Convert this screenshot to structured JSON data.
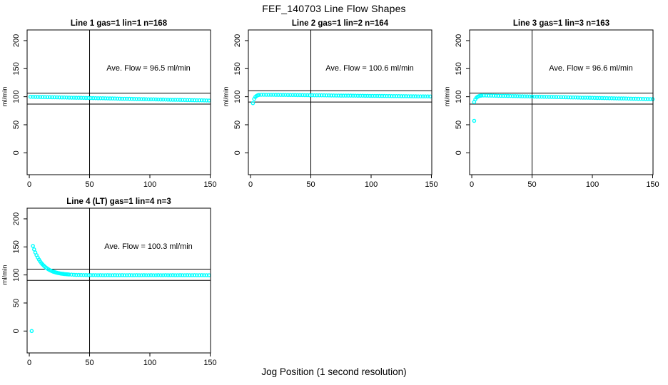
{
  "title": "FEF_140703  Line Flow Shapes",
  "xlabel": "Jog Position (1 second resolution)",
  "ylabel": "ml/min",
  "colors": {
    "marker": "#00FFFF",
    "axis": "#000000",
    "background": "#FFFFFF"
  },
  "axes": {
    "x_ticks": [
      0,
      50,
      100,
      150
    ],
    "y_ticks": [
      0,
      50,
      100,
      150,
      200
    ],
    "x_range": [
      -1.8,
      150.3
    ],
    "y_range": [
      -39,
      219
    ],
    "grid": false
  },
  "chart_data": [
    {
      "type": "scatter",
      "title": "Line 1 gas=1 lin=1 n=168",
      "n": 168,
      "ave_flow": 96.5,
      "annotation": "Ave. Flow =  96.5  ml/min",
      "vline_x": 50,
      "hlines": [
        106.2,
        86.9
      ],
      "points": [
        [
          1,
          99.9
        ],
        [
          3,
          99.8
        ],
        [
          5,
          99.7
        ],
        [
          7,
          99.6
        ],
        [
          9,
          99.5
        ],
        [
          11,
          99.4
        ],
        [
          13,
          99.3
        ],
        [
          15,
          99.2
        ],
        [
          17,
          99.1
        ],
        [
          19,
          99.0
        ],
        [
          21,
          99.0
        ],
        [
          23,
          98.9
        ],
        [
          25,
          98.8
        ],
        [
          27,
          98.7
        ],
        [
          29,
          98.6
        ],
        [
          31,
          98.5
        ],
        [
          33,
          98.4
        ],
        [
          35,
          98.3
        ],
        [
          37,
          98.2
        ],
        [
          39,
          98.1
        ],
        [
          41,
          98.1
        ],
        [
          43,
          98.0
        ],
        [
          45,
          97.9
        ],
        [
          47,
          97.8
        ],
        [
          49,
          97.7
        ],
        [
          51,
          97.6
        ],
        [
          53,
          97.5
        ],
        [
          55,
          97.4
        ],
        [
          57,
          97.3
        ],
        [
          59,
          97.2
        ],
        [
          61,
          97.2
        ],
        [
          63,
          97.1
        ],
        [
          65,
          97.0
        ],
        [
          67,
          96.9
        ],
        [
          69,
          96.8
        ],
        [
          71,
          96.7
        ],
        [
          73,
          96.6
        ],
        [
          75,
          96.5
        ],
        [
          77,
          96.4
        ],
        [
          79,
          96.3
        ],
        [
          81,
          96.3
        ],
        [
          83,
          96.2
        ],
        [
          85,
          96.1
        ],
        [
          87,
          96.0
        ],
        [
          89,
          95.9
        ],
        [
          91,
          95.8
        ],
        [
          93,
          95.7
        ],
        [
          95,
          95.6
        ],
        [
          97,
          95.5
        ],
        [
          99,
          95.4
        ],
        [
          101,
          95.4
        ],
        [
          103,
          95.3
        ],
        [
          105,
          95.2
        ],
        [
          107,
          95.1
        ],
        [
          109,
          95.0
        ],
        [
          111,
          94.9
        ],
        [
          113,
          94.8
        ],
        [
          115,
          94.7
        ],
        [
          117,
          94.6
        ],
        [
          119,
          94.5
        ],
        [
          121,
          94.5
        ],
        [
          123,
          94.4
        ],
        [
          125,
          94.3
        ],
        [
          127,
          94.2
        ],
        [
          129,
          94.1
        ],
        [
          131,
          94.0
        ],
        [
          133,
          93.9
        ],
        [
          135,
          93.8
        ],
        [
          137,
          93.7
        ],
        [
          139,
          93.6
        ],
        [
          141,
          93.6
        ],
        [
          143,
          93.5
        ],
        [
          145,
          93.4
        ],
        [
          147,
          93.3
        ],
        [
          149,
          93.2
        ]
      ]
    },
    {
      "type": "scatter",
      "title": "Line 2 gas=1 lin=2 n=164",
      "n": 164,
      "ave_flow": 100.6,
      "annotation": "Ave. Flow =  100.6  ml/min",
      "vline_x": 50,
      "hlines": [
        110.7,
        90.5
      ],
      "points": [
        [
          2,
          88.5
        ],
        [
          3,
          96.0
        ],
        [
          4,
          99.5
        ],
        [
          5,
          101.5
        ],
        [
          6,
          102.6
        ],
        [
          7,
          103.2
        ],
        [
          9,
          103.5
        ],
        [
          11,
          103.5
        ],
        [
          13,
          103.4
        ],
        [
          15,
          103.4
        ],
        [
          17,
          103.3
        ],
        [
          19,
          103.3
        ],
        [
          21,
          103.2
        ],
        [
          23,
          103.2
        ],
        [
          25,
          103.1
        ],
        [
          27,
          103.1
        ],
        [
          29,
          103.1
        ],
        [
          31,
          103.0
        ],
        [
          33,
          103.0
        ],
        [
          35,
          102.9
        ],
        [
          37,
          102.9
        ],
        [
          39,
          102.8
        ],
        [
          41,
          102.8
        ],
        [
          43,
          102.8
        ],
        [
          45,
          102.7
        ],
        [
          47,
          102.7
        ],
        [
          49,
          102.6
        ],
        [
          51,
          102.6
        ],
        [
          53,
          102.5
        ],
        [
          55,
          102.5
        ],
        [
          57,
          102.4
        ],
        [
          59,
          102.4
        ],
        [
          61,
          102.4
        ],
        [
          63,
          102.3
        ],
        [
          65,
          102.3
        ],
        [
          67,
          102.2
        ],
        [
          69,
          102.2
        ],
        [
          71,
          102.1
        ],
        [
          73,
          102.1
        ],
        [
          75,
          102.0
        ],
        [
          77,
          102.0
        ],
        [
          79,
          102.0
        ],
        [
          81,
          101.9
        ],
        [
          83,
          101.9
        ],
        [
          85,
          101.8
        ],
        [
          87,
          101.8
        ],
        [
          89,
          101.7
        ],
        [
          91,
          101.7
        ],
        [
          93,
          101.7
        ],
        [
          95,
          101.6
        ],
        [
          97,
          101.6
        ],
        [
          99,
          101.5
        ],
        [
          101,
          101.5
        ],
        [
          103,
          101.4
        ],
        [
          105,
          101.4
        ],
        [
          107,
          101.3
        ],
        [
          109,
          101.3
        ],
        [
          111,
          101.3
        ],
        [
          113,
          101.2
        ],
        [
          115,
          101.2
        ],
        [
          117,
          101.1
        ],
        [
          119,
          101.1
        ],
        [
          121,
          101.0
        ],
        [
          123,
          101.0
        ],
        [
          125,
          100.9
        ],
        [
          127,
          100.9
        ],
        [
          129,
          100.9
        ],
        [
          131,
          100.8
        ],
        [
          133,
          100.8
        ],
        [
          135,
          100.7
        ],
        [
          137,
          100.7
        ],
        [
          139,
          100.6
        ],
        [
          141,
          100.6
        ],
        [
          143,
          100.6
        ],
        [
          145,
          100.5
        ],
        [
          147,
          100.5
        ],
        [
          149,
          100.4
        ]
      ]
    },
    {
      "type": "scatter",
      "title": "Line 3 gas=1 lin=3 n=163",
      "n": 163,
      "ave_flow": 96.6,
      "annotation": "Ave. Flow =  96.6  ml/min",
      "vline_x": 50,
      "hlines": [
        106.3,
        86.9
      ],
      "points": [
        [
          2,
          57.0
        ],
        [
          2,
          90.5
        ],
        [
          3,
          95.5
        ],
        [
          4,
          98.5
        ],
        [
          5,
          100.0
        ],
        [
          6,
          101.0
        ],
        [
          7,
          101.7
        ],
        [
          8,
          102.0
        ],
        [
          10,
          102.2
        ],
        [
          12,
          102.1
        ],
        [
          14,
          102.0
        ],
        [
          16,
          101.9
        ],
        [
          18,
          101.8
        ],
        [
          20,
          101.7
        ],
        [
          22,
          101.6
        ],
        [
          24,
          101.5
        ],
        [
          26,
          101.4
        ],
        [
          28,
          101.4
        ],
        [
          30,
          101.3
        ],
        [
          32,
          101.2
        ],
        [
          34,
          101.1
        ],
        [
          36,
          101.0
        ],
        [
          38,
          100.9
        ],
        [
          40,
          100.8
        ],
        [
          42,
          100.7
        ],
        [
          44,
          100.6
        ],
        [
          46,
          100.5
        ],
        [
          48,
          100.4
        ],
        [
          50,
          100.3
        ],
        [
          52,
          100.2
        ],
        [
          54,
          100.1
        ],
        [
          56,
          100.0
        ],
        [
          58,
          99.9
        ],
        [
          60,
          99.8
        ],
        [
          62,
          99.8
        ],
        [
          64,
          99.7
        ],
        [
          66,
          99.6
        ],
        [
          68,
          99.5
        ],
        [
          70,
          99.4
        ],
        [
          72,
          99.3
        ],
        [
          74,
          99.2
        ],
        [
          76,
          99.1
        ],
        [
          78,
          99.0
        ],
        [
          80,
          98.9
        ],
        [
          82,
          98.8
        ],
        [
          84,
          98.7
        ],
        [
          86,
          98.6
        ],
        [
          88,
          98.5
        ],
        [
          90,
          98.4
        ],
        [
          92,
          98.3
        ],
        [
          94,
          98.3
        ],
        [
          96,
          98.2
        ],
        [
          98,
          98.1
        ],
        [
          100,
          98.0
        ],
        [
          102,
          97.9
        ],
        [
          104,
          97.8
        ],
        [
          106,
          97.7
        ],
        [
          108,
          97.6
        ],
        [
          110,
          97.5
        ],
        [
          112,
          97.4
        ],
        [
          114,
          97.3
        ],
        [
          116,
          97.2
        ],
        [
          118,
          97.1
        ],
        [
          120,
          97.0
        ],
        [
          122,
          96.9
        ],
        [
          124,
          96.9
        ],
        [
          126,
          96.8
        ],
        [
          128,
          96.7
        ],
        [
          130,
          96.6
        ],
        [
          132,
          96.5
        ],
        [
          134,
          96.4
        ],
        [
          136,
          96.3
        ],
        [
          138,
          96.2
        ],
        [
          140,
          96.1
        ],
        [
          142,
          96.0
        ],
        [
          144,
          95.9
        ],
        [
          146,
          95.8
        ],
        [
          148,
          95.7
        ],
        [
          150,
          95.6
        ]
      ]
    },
    {
      "type": "scatter",
      "title": "Line 4 (LT) gas=1 lin=4 n=3",
      "n": 3,
      "ave_flow": 100.3,
      "annotation": "Ave. Flow =  100.3  ml/min",
      "vline_x": 50,
      "hlines": [
        110.3,
        90.3
      ],
      "points": [
        [
          2,
          0.0
        ],
        [
          3,
          151.6
        ],
        [
          4,
          145.5
        ],
        [
          5,
          140.1
        ],
        [
          6,
          135.3
        ],
        [
          7,
          131.1
        ],
        [
          8,
          127.4
        ],
        [
          9,
          124.2
        ],
        [
          10,
          121.3
        ],
        [
          11,
          118.7
        ],
        [
          12,
          116.5
        ],
        [
          13,
          114.5
        ],
        [
          14,
          112.7
        ],
        [
          15,
          111.2
        ],
        [
          16,
          109.8
        ],
        [
          17,
          108.6
        ],
        [
          18,
          107.6
        ],
        [
          19,
          106.6
        ],
        [
          20,
          105.8
        ],
        [
          21,
          105.1
        ],
        [
          22,
          104.4
        ],
        [
          23,
          103.9
        ],
        [
          24,
          103.4
        ],
        [
          25,
          102.9
        ],
        [
          26,
          102.5
        ],
        [
          27,
          102.2
        ],
        [
          28,
          101.9
        ],
        [
          29,
          101.6
        ],
        [
          30,
          101.4
        ],
        [
          31,
          101.2
        ],
        [
          32,
          101.0
        ],
        [
          33,
          100.8
        ],
        [
          35,
          100.5
        ],
        [
          37,
          100.3
        ],
        [
          39,
          100.1
        ],
        [
          41,
          100.0
        ],
        [
          43,
          99.9
        ],
        [
          45,
          99.8
        ],
        [
          47,
          99.8
        ],
        [
          49,
          99.7
        ],
        [
          51,
          99.7
        ],
        [
          53,
          99.6
        ],
        [
          55,
          99.6
        ],
        [
          57,
          99.5
        ],
        [
          59,
          99.6
        ],
        [
          61,
          99.5
        ],
        [
          63,
          99.5
        ],
        [
          65,
          99.6
        ],
        [
          67,
          99.5
        ],
        [
          69,
          99.5
        ],
        [
          71,
          99.6
        ],
        [
          73,
          99.5
        ],
        [
          75,
          99.5
        ],
        [
          77,
          99.6
        ],
        [
          79,
          99.5
        ],
        [
          81,
          99.5
        ],
        [
          83,
          99.6
        ],
        [
          85,
          99.5
        ],
        [
          87,
          99.5
        ],
        [
          89,
          99.6
        ],
        [
          91,
          99.5
        ],
        [
          93,
          99.5
        ],
        [
          95,
          99.6
        ],
        [
          97,
          99.5
        ],
        [
          99,
          99.5
        ],
        [
          101,
          99.6
        ],
        [
          103,
          99.5
        ],
        [
          105,
          99.5
        ],
        [
          107,
          99.6
        ],
        [
          109,
          99.5
        ],
        [
          111,
          99.5
        ],
        [
          113,
          99.6
        ],
        [
          115,
          99.5
        ],
        [
          117,
          99.5
        ],
        [
          119,
          99.6
        ],
        [
          121,
          99.5
        ],
        [
          123,
          99.5
        ],
        [
          125,
          99.6
        ],
        [
          127,
          99.5
        ],
        [
          129,
          99.5
        ],
        [
          131,
          99.6
        ],
        [
          133,
          99.5
        ],
        [
          135,
          99.5
        ],
        [
          137,
          99.6
        ],
        [
          139,
          99.5
        ],
        [
          141,
          99.5
        ],
        [
          143,
          99.6
        ],
        [
          145,
          99.5
        ],
        [
          147,
          99.5
        ],
        [
          149,
          99.5
        ]
      ]
    }
  ]
}
